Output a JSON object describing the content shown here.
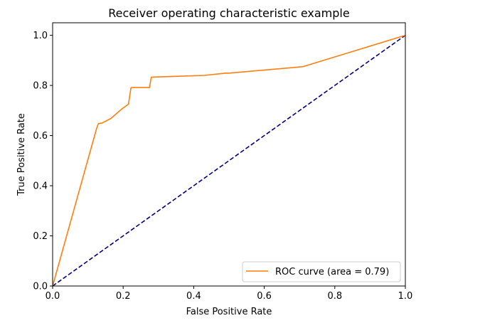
{
  "chart_data": {
    "type": "line",
    "title": "Receiver operating characteristic example",
    "xlabel": "False Positive Rate",
    "ylabel": "True Positive Rate",
    "xlim": [
      0.0,
      1.0
    ],
    "ylim": [
      0.0,
      1.05
    ],
    "xticks": [
      "0.0",
      "0.2",
      "0.4",
      "0.6",
      "0.8",
      "1.0"
    ],
    "yticks": [
      "0.0",
      "0.2",
      "0.4",
      "0.6",
      "0.8",
      "1.0"
    ],
    "grid": false,
    "legend_position": "lower right",
    "series": [
      {
        "name": "ROC curve (area = 0.79)",
        "color": "#ff7f0e",
        "style": "solid",
        "x": [
          0.0,
          0.125,
          0.13,
          0.14,
          0.165,
          0.195,
          0.215,
          0.222,
          0.225,
          0.275,
          0.278,
          0.28,
          0.43,
          0.49,
          0.5,
          0.71,
          1.0
        ],
        "y": [
          0.0,
          0.63,
          0.648,
          0.65,
          0.668,
          0.705,
          0.725,
          0.79,
          0.792,
          0.792,
          0.82,
          0.833,
          0.84,
          0.849,
          0.849,
          0.875,
          1.0
        ]
      },
      {
        "name": "",
        "color": "#000080",
        "style": "dashed",
        "x": [
          0.0,
          1.0
        ],
        "y": [
          0.0,
          1.0
        ]
      }
    ]
  }
}
